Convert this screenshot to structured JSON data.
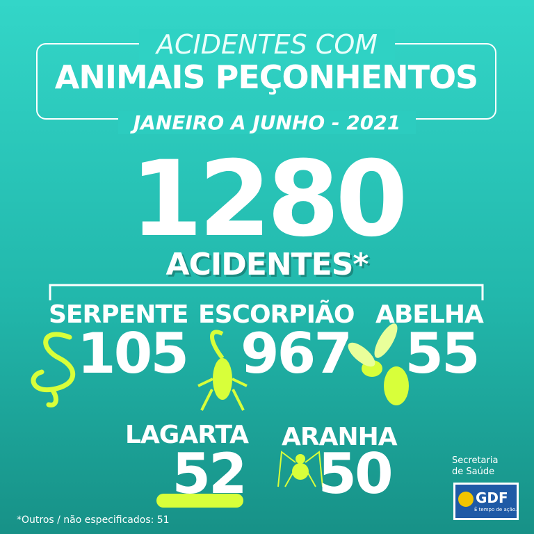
{
  "header": {
    "line1": "ACIDENTES COM",
    "line2": "ANIMAIS PEÇONHENTOS",
    "period": "JANEIRO A JUNHO - 2021"
  },
  "total": {
    "value": 1280,
    "label": "ACIDENTES*"
  },
  "items": [
    {
      "label": "SERPENTE",
      "value": 105
    },
    {
      "label": "ESCORPIÃO",
      "value": 967
    },
    {
      "label": "ABELHA",
      "value": 55
    },
    {
      "label": "LAGARTA",
      "value": 52
    },
    {
      "label": "ARANHA",
      "value": 50
    }
  ],
  "footnote": "*Outros / não especificados: 51",
  "logo": {
    "line1": "Secretaria",
    "line2": "de Saúde",
    "brand": "GDF",
    "slogan": "É tempo de ação."
  }
}
